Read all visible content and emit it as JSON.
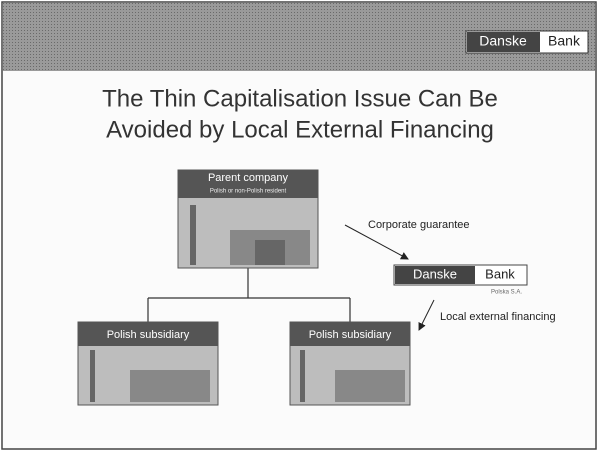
{
  "header": {
    "logo": {
      "name": "Danske",
      "suffix": "Bank"
    }
  },
  "title": {
    "lines": [
      "The Thin Capitalisation Issue Can Be",
      "Avoided by Local External Financing"
    ]
  },
  "nodes": [
    {
      "label": "Parent company",
      "sublabel": "Polish or non-Polish resident"
    },
    {
      "label": "Polish subsidiary"
    },
    {
      "label": "Polish subsidiary"
    },
    {
      "label": "Danske",
      "suffix": "Bank",
      "sublabel": "Polska S.A."
    }
  ],
  "edges": [
    {
      "label": "Corporate guarantee"
    },
    {
      "label": "Local external financing"
    }
  ]
}
